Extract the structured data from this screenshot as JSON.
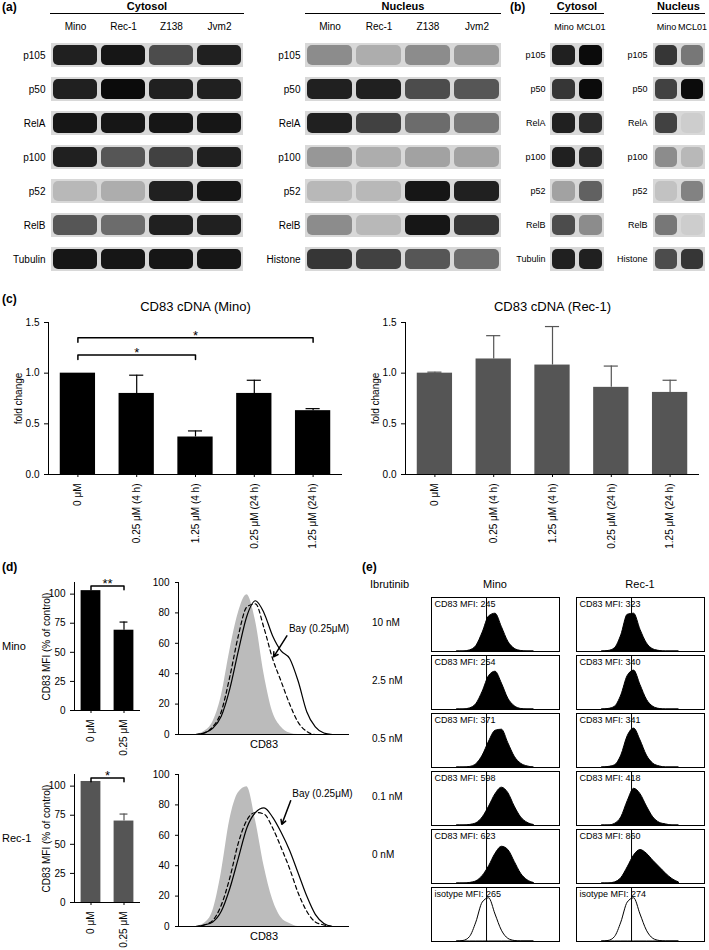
{
  "blots": [
    {
      "panel": "(a)",
      "header": "Cytosol",
      "lanes": [
        "Mino",
        "Rec-1",
        "Z138",
        "Jvm2"
      ],
      "rows": [
        "p105",
        "p50",
        "RelA",
        "p100",
        "p52",
        "RelB",
        "Tubulin"
      ],
      "intensity_lim": [
        0,
        1
      ],
      "intensity": [
        [
          0.85,
          0.9,
          0.65,
          0.85
        ],
        [
          0.85,
          0.95,
          0.85,
          0.85
        ],
        [
          0.9,
          0.9,
          0.9,
          0.9
        ],
        [
          0.85,
          0.6,
          0.7,
          0.85
        ],
        [
          0.15,
          0.2,
          0.85,
          0.9
        ],
        [
          0.6,
          0.5,
          0.85,
          0.85
        ],
        [
          0.9,
          0.9,
          0.9,
          0.9
        ]
      ]
    },
    {
      "header": "Nucleus",
      "lanes": [
        "Mino",
        "Rec-1",
        "Z138",
        "Jvm2"
      ],
      "rows": [
        "p105",
        "p50",
        "RelA",
        "p100",
        "p52",
        "RelB",
        "Histone"
      ],
      "intensity_lim": [
        0,
        1
      ],
      "intensity": [
        [
          0.35,
          0.2,
          0.35,
          0.3
        ],
        [
          0.85,
          0.85,
          0.65,
          0.6
        ],
        [
          0.85,
          0.7,
          0.5,
          0.45
        ],
        [
          0.3,
          0.2,
          0.25,
          0.25
        ],
        [
          0.15,
          0.15,
          0.9,
          0.85
        ],
        [
          0.35,
          0.15,
          0.9,
          0.75
        ],
        [
          0.75,
          0.7,
          0.6,
          0.5
        ]
      ]
    },
    {
      "panel": "(b)",
      "header": "Cytosol",
      "lanes": [
        "Mino",
        "MCL01"
      ],
      "rows": [
        "p105",
        "p50",
        "RelA",
        "p100",
        "p52",
        "RelB",
        "Tubulin"
      ],
      "intensity_lim": [
        0,
        1
      ],
      "intensity": [
        [
          0.85,
          0.95
        ],
        [
          0.75,
          0.95
        ],
        [
          0.85,
          0.8
        ],
        [
          0.85,
          0.8
        ],
        [
          0.25,
          0.55
        ],
        [
          0.65,
          0.35
        ],
        [
          0.85,
          0.85
        ]
      ]
    },
    {
      "header": "Nucleus",
      "lanes": [
        "Mino",
        "MCL01"
      ],
      "rows": [
        "p105",
        "p50",
        "RelA",
        "p100",
        "p52",
        "RelB",
        "Histone"
      ],
      "intensity_lim": [
        0,
        1
      ],
      "intensity": [
        [
          0.75,
          0.45
        ],
        [
          0.7,
          0.95
        ],
        [
          0.7,
          0.05
        ],
        [
          0.35,
          0.15
        ],
        [
          0.1,
          0.4
        ],
        [
          0.45,
          0.05
        ],
        [
          0.65,
          0.75
        ]
      ]
    }
  ],
  "chart_data": [
    {
      "panel": "(c)",
      "type": "bar",
      "title": "CD83 cDNA (Mino)",
      "y_label": "fold change",
      "categories": [
        "0 μM",
        "0.25 μM (4 h)",
        "1.25 μM (4 h)",
        "0.25 μM (24 h)",
        "1.25 μM (24 h)"
      ],
      "values": [
        1.0,
        0.8,
        0.37,
        0.8,
        0.63
      ],
      "errors": [
        null,
        0.18,
        0.06,
        0.13,
        0.02
      ],
      "color": "#000000",
      "ylim": [
        0,
        1.5
      ],
      "yticks": [
        {
          "value": 0,
          "label": "0.0"
        },
        {
          "value": 0.5,
          "label": "0.5"
        },
        {
          "value": 1,
          "label": "1.0"
        },
        {
          "value": 1.5,
          "label": "1.5"
        }
      ],
      "significance": [
        {
          "from": 0,
          "to": 2,
          "y": 1.18,
          "label": "*"
        },
        {
          "from": 0,
          "to": 4,
          "y": 1.35,
          "label": "*"
        }
      ]
    },
    {
      "type": "bar",
      "title": "CD83 cDNA (Rec-1)",
      "y_label": "fold change",
      "categories": [
        "0 μM",
        "0.25 μM (4 h)",
        "1.25 μM (4 h)",
        "0.25 μM (24 h)",
        "1.25 μM (24 h)"
      ],
      "values": [
        1.0,
        1.14,
        1.08,
        0.86,
        0.81
      ],
      "errors": [
        0.01,
        0.23,
        0.38,
        0.21,
        0.12
      ],
      "color": "#555555",
      "ylim": [
        0,
        1.5
      ],
      "yticks": [
        {
          "value": 0,
          "label": "0.0"
        },
        {
          "value": 0.5,
          "label": "0.5"
        },
        {
          "value": 1,
          "label": "1.0"
        },
        {
          "value": 1.5,
          "label": "1.5"
        }
      ]
    },
    {
      "panel": "(d)",
      "side_label": "Mino",
      "type": "bar",
      "y_label": "CD83 MFI (% of control)",
      "categories": [
        "0 μM",
        "0.25 μM"
      ],
      "values": [
        103,
        69
      ],
      "errors": [
        null,
        7
      ],
      "color": "#000000",
      "ylim": [
        0,
        110
      ],
      "yticks": [
        0,
        25,
        50,
        75,
        100
      ],
      "significance": [
        {
          "from": 0,
          "to": 1,
          "y": 107,
          "label": "**"
        }
      ]
    },
    {
      "type": "line",
      "x_label": "CD83",
      "tick_labels": "y",
      "x": [
        10,
        15,
        20,
        25,
        30,
        35,
        40,
        45,
        50,
        55,
        60,
        65,
        70,
        75,
        80,
        85,
        90
      ],
      "xlim": [
        0,
        100
      ],
      "ylim": [
        0,
        100
      ],
      "yticks": [
        0,
        20,
        40,
        60,
        80,
        100
      ],
      "series": [
        {
          "type": "area",
          "color": "#bbbbbb",
          "values": [
            0,
            2,
            8,
            25,
            55,
            80,
            92,
            75,
            40,
            15,
            5,
            1,
            0,
            0,
            0,
            0,
            0
          ]
        },
        {
          "color": "#000000",
          "line_style": "solid",
          "values": [
            0,
            1,
            4,
            12,
            30,
            55,
            78,
            88,
            80,
            65,
            55,
            50,
            35,
            15,
            5,
            1,
            0
          ]
        },
        {
          "color": "#000000",
          "line_style": "dashed",
          "values": [
            0,
            1,
            5,
            15,
            38,
            65,
            84,
            86,
            70,
            50,
            35,
            20,
            8,
            2,
            0,
            0,
            0
          ]
        }
      ],
      "annotations": [
        {
          "text": "Bay (0.25μM)",
          "x": 64,
          "y": 66,
          "to_x": 55,
          "to_y": 50
        }
      ]
    },
    {
      "side_label": "Rec-1",
      "type": "bar",
      "y_label": "CD83 MFI (% of control)",
      "categories": [
        "0 μM",
        "0.25 μM"
      ],
      "values": [
        104,
        70
      ],
      "errors": [
        null,
        6
      ],
      "color": "#555555",
      "ylim": [
        0,
        110
      ],
      "yticks": [
        0,
        25,
        50,
        75,
        100
      ],
      "significance": [
        {
          "from": 0,
          "to": 1,
          "y": 107,
          "label": "*"
        }
      ]
    },
    {
      "type": "line",
      "x_label": "CD83",
      "tick_labels": "y",
      "x": [
        10,
        15,
        20,
        25,
        30,
        35,
        40,
        45,
        50,
        55,
        60,
        65,
        70,
        75,
        80,
        85,
        90
      ],
      "xlim": [
        0,
        100
      ],
      "ylim": [
        0,
        100
      ],
      "yticks": [
        0,
        20,
        40,
        60,
        80,
        100
      ],
      "series": [
        {
          "type": "area",
          "color": "#bbbbbb",
          "values": [
            0,
            2,
            10,
            35,
            70,
            88,
            92,
            70,
            40,
            18,
            6,
            2,
            0,
            0,
            0,
            0,
            0
          ]
        },
        {
          "color": "#000000",
          "line_style": "solid",
          "values": [
            0,
            1,
            3,
            10,
            25,
            45,
            65,
            75,
            78,
            72,
            62,
            50,
            35,
            20,
            8,
            2,
            0
          ]
        },
        {
          "color": "#000000",
          "line_style": "dashed",
          "values": [
            0,
            1,
            4,
            14,
            32,
            55,
            70,
            75,
            74,
            65,
            52,
            38,
            22,
            10,
            3,
            1,
            0
          ]
        }
      ],
      "annotations": [
        {
          "text": "Bay (0.25μM)",
          "x": 66,
          "y": 84,
          "to_x": 60,
          "to_y": 66
        }
      ]
    }
  ],
  "flow_grid": {
    "panel": "(e)",
    "title": "Ibrutinib",
    "type": "area",
    "tick_labels": false,
    "row_labels": [
      "10 nM",
      "2.5 nM",
      "0.5 nM",
      "0.1 nM",
      "0 nM",
      null
    ],
    "x": [
      20,
      25,
      30,
      35,
      40,
      45,
      50,
      55,
      60,
      65,
      70,
      75,
      80
    ],
    "xlim": [
      0,
      100
    ],
    "ylim": [
      0,
      100
    ],
    "columns": [
      {
        "name": "Mino",
        "isotype_line": 43,
        "histograms": [
          {
            "text": "CD83 MFI: 245",
            "color": "#000000",
            "values": [
              0,
              0,
              2,
              10,
              35,
              65,
              70,
              45,
              18,
              5,
              1,
              0,
              0
            ]
          },
          {
            "text": "CD83 MFI: 254",
            "color": "#000000",
            "values": [
              0,
              0,
              2,
              10,
              33,
              62,
              70,
              48,
              20,
              6,
              1,
              0,
              0
            ]
          },
          {
            "text": "CD83 MFI: 371",
            "color": "#000000",
            "values": [
              0,
              0,
              1,
              6,
              22,
              48,
              68,
              70,
              45,
              20,
              7,
              2,
              0
            ]
          },
          {
            "text": "CD83 MFI: 598",
            "color": "#000000",
            "values": [
              0,
              0,
              1,
              4,
              15,
              35,
              58,
              70,
              60,
              35,
              15,
              5,
              1
            ]
          },
          {
            "text": "CD83 MFI: 623",
            "color": "#000000",
            "values": [
              0,
              0,
              1,
              4,
              14,
              32,
              55,
              68,
              62,
              40,
              18,
              6,
              1
            ]
          },
          {
            "text": "isotype MFI: 265",
            "color": "#ffffff",
            "values": [
              0,
              1,
              8,
              35,
              72,
              80,
              50,
              20,
              5,
              1,
              0,
              0,
              0
            ]
          }
        ]
      },
      {
        "name": "Rec-1",
        "isotype_line": 43,
        "histograms": [
          {
            "text": "CD83 MFI: 323",
            "color": "#000000",
            "values": [
              0,
              1,
              6,
              30,
              68,
              70,
              40,
              15,
              4,
              1,
              0,
              0,
              0
            ]
          },
          {
            "text": "CD83 MFI: 340",
            "color": "#000000",
            "values": [
              0,
              1,
              5,
              26,
              62,
              72,
              45,
              18,
              5,
              1,
              0,
              0,
              0
            ]
          },
          {
            "text": "CD83 MFI: 341",
            "color": "#000000",
            "values": [
              0,
              1,
              4,
              22,
              58,
              72,
              50,
              22,
              7,
              2,
              0,
              0,
              0
            ]
          },
          {
            "text": "CD83 MFI: 418",
            "color": "#000000",
            "values": [
              0,
              0,
              3,
              15,
              45,
              68,
              58,
              35,
              15,
              5,
              2,
              0,
              0
            ]
          },
          {
            "text": "CD83 MFI: 860",
            "color": "#000000",
            "values": [
              0,
              0,
              2,
              10,
              30,
              52,
              62,
              55,
              42,
              30,
              18,
              8,
              2
            ]
          },
          {
            "text": "isotype MFI: 274",
            "color": "#ffffff",
            "values": [
              0,
              1,
              8,
              35,
              72,
              80,
              50,
              20,
              5,
              1,
              0,
              0,
              0
            ]
          }
        ]
      }
    ]
  }
}
